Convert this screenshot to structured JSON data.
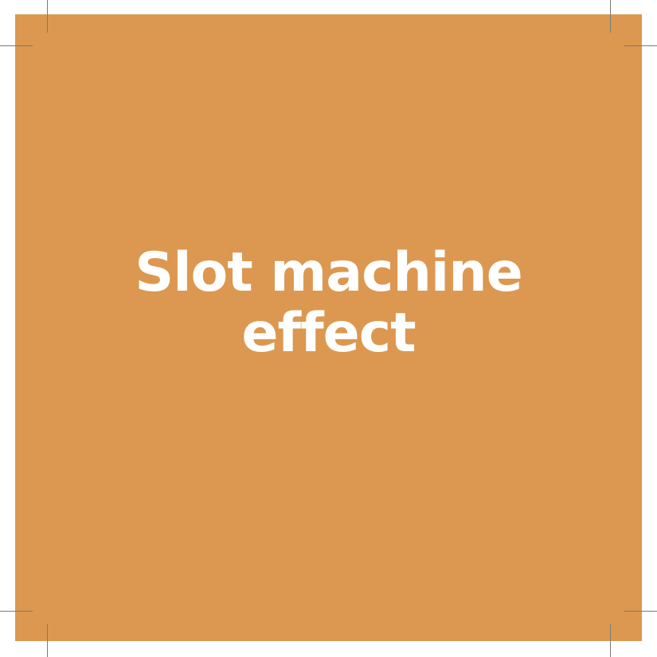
{
  "title": {
    "line1": "Slot machine",
    "line2": "effect"
  },
  "colors": {
    "background": "#dc9850",
    "text": "#ffffff",
    "page": "#ffffff",
    "crop_marks": "#7a7a7a"
  },
  "decorations": {
    "crop_marks": "corner-crop-marks"
  }
}
